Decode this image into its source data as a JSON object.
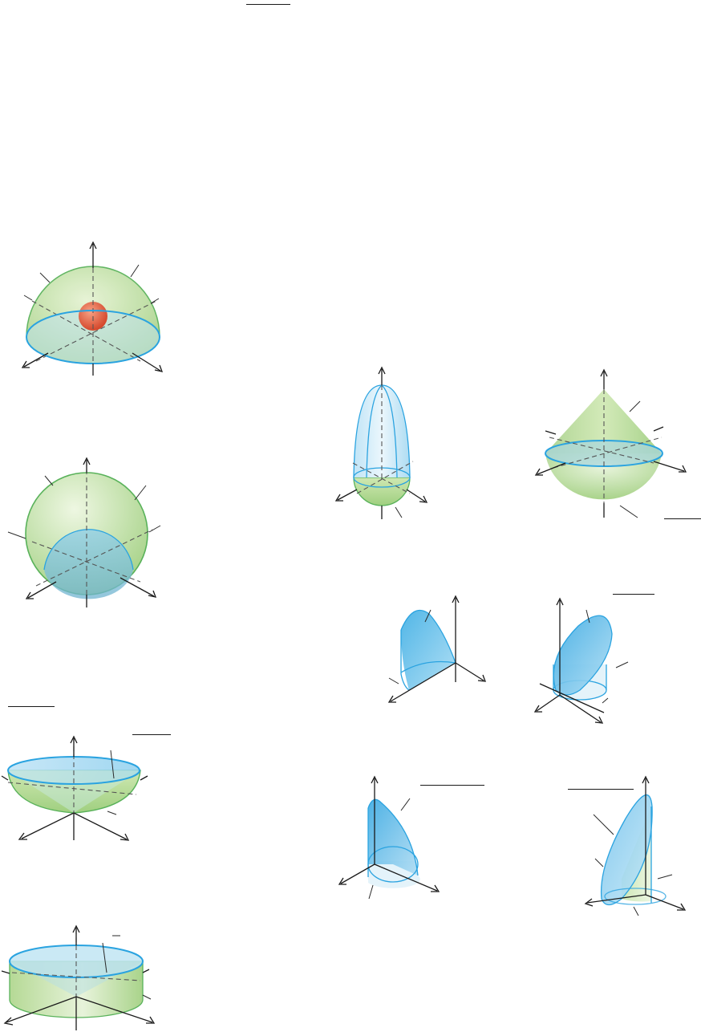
{
  "page": {
    "background": "#ffffff"
  },
  "colors": {
    "green_solid": "#c8e3a6",
    "green_edge": "#59b25a",
    "blue_surface": "#9fd6f3",
    "blue_rim": "#2aa3e0",
    "red_ball": "#e0593b",
    "axis": "#1a1a1a"
  },
  "figures": [
    {
      "id": "hemisphere-with-ball",
      "icon": "hemisphere-with-red-ball"
    },
    {
      "id": "sphere-with-inner-hemisphere",
      "icon": "sphere-inside-hemisphere"
    },
    {
      "id": "bowl-with-cone",
      "icon": "hemispherical-bowl-with-cone"
    },
    {
      "id": "ring-with-cone",
      "icon": "cylindrical-ring-with-cone"
    },
    {
      "id": "tall-dome",
      "icon": "paraboloid-over-hemisphere"
    },
    {
      "id": "cone-over-hemisphere",
      "icon": "cone-on-hemisphere"
    },
    {
      "id": "quarter-cylinder-wedge",
      "icon": "cylinder-wedge"
    },
    {
      "id": "tilted-plane-cylinder",
      "icon": "cylinder-cut-by-plane"
    },
    {
      "id": "small-wedge",
      "icon": "cylinder-wedge-small"
    },
    {
      "id": "tall-slanted-cylinder",
      "icon": "cylinder-cut-by-steep-plane"
    }
  ]
}
